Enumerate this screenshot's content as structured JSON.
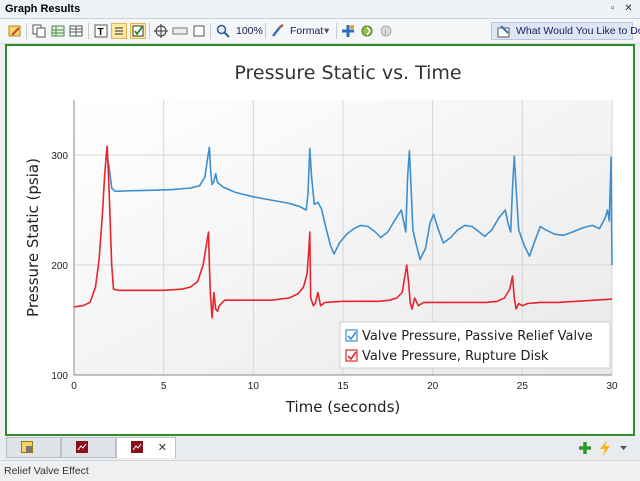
{
  "window": {
    "title": "Graph Results",
    "restore_glyph": "▫",
    "close_glyph": "✕"
  },
  "toolbar": {
    "zoom_label": "100%",
    "format_label": "Format",
    "help_label": "What Would You Like to Do?"
  },
  "tabs": [
    {
      "icon": "data-table-icon",
      "active": false
    },
    {
      "icon": "graph-icon",
      "active": false
    },
    {
      "icon": "graph-icon",
      "active": true,
      "close": "✕"
    }
  ],
  "status": {
    "text": "Relief Valve Effect"
  },
  "chart_data": {
    "type": "line",
    "title": "Pressure Static vs. Time",
    "xlabel": "Time (seconds)",
    "ylabel": "Pressure Static (psia)",
    "xlim": [
      0,
      30
    ],
    "ylim": [
      100,
      350
    ],
    "xticks": [
      0,
      5,
      10,
      15,
      20,
      25,
      30
    ],
    "yticks": [
      100,
      200,
      300
    ],
    "grid": true,
    "legend_position": "bottom-right",
    "series": [
      {
        "name": "Valve Pressure, Passive Relief Valve",
        "color": "#3d8fcf",
        "points": [
          [
            1.8,
            300
          ],
          [
            1.95,
            290
          ],
          [
            2.1,
            270
          ],
          [
            2.3,
            267
          ],
          [
            3,
            267.5
          ],
          [
            4.5,
            268
          ],
          [
            5.5,
            268.5
          ],
          [
            6.5,
            270
          ],
          [
            7.0,
            272
          ],
          [
            7.3,
            280
          ],
          [
            7.45,
            297
          ],
          [
            7.55,
            307
          ],
          [
            7.62,
            285
          ],
          [
            7.7,
            273
          ],
          [
            7.8,
            276
          ],
          [
            7.9,
            283
          ],
          [
            8.0,
            275
          ],
          [
            8.3,
            271
          ],
          [
            9.0,
            266
          ],
          [
            10,
            262
          ],
          [
            11,
            259
          ],
          [
            12,
            256
          ],
          [
            12.6,
            253
          ],
          [
            12.95,
            250
          ],
          [
            13.05,
            265
          ],
          [
            13.15,
            306
          ],
          [
            13.25,
            280
          ],
          [
            13.4,
            255
          ],
          [
            13.6,
            257
          ],
          [
            13.8,
            251
          ],
          [
            14.0,
            237
          ],
          [
            14.3,
            218
          ],
          [
            14.5,
            210
          ],
          [
            14.8,
            220
          ],
          [
            15.2,
            228
          ],
          [
            15.6,
            233
          ],
          [
            16.0,
            236
          ],
          [
            16.4,
            235
          ],
          [
            16.8,
            230
          ],
          [
            17.1,
            225
          ],
          [
            17.5,
            230
          ],
          [
            17.9,
            241
          ],
          [
            18.25,
            250
          ],
          [
            18.4,
            238
          ],
          [
            18.5,
            230
          ],
          [
            18.6,
            280
          ],
          [
            18.7,
            304
          ],
          [
            18.8,
            270
          ],
          [
            18.9,
            232
          ],
          [
            19.05,
            221
          ],
          [
            19.3,
            205
          ],
          [
            19.6,
            215
          ],
          [
            19.85,
            238
          ],
          [
            20.05,
            246
          ],
          [
            20.3,
            233
          ],
          [
            20.6,
            220
          ],
          [
            21.0,
            225
          ],
          [
            21.4,
            232
          ],
          [
            21.8,
            236
          ],
          [
            22.2,
            235
          ],
          [
            22.6,
            230
          ],
          [
            22.9,
            226
          ],
          [
            23.3,
            232
          ],
          [
            23.7,
            243
          ],
          [
            24.05,
            250
          ],
          [
            24.2,
            238
          ],
          [
            24.35,
            230
          ],
          [
            24.45,
            270
          ],
          [
            24.55,
            299
          ],
          [
            24.65,
            270
          ],
          [
            24.8,
            232
          ],
          [
            25.1,
            218
          ],
          [
            25.4,
            208
          ],
          [
            25.7,
            222
          ],
          [
            26.0,
            235
          ],
          [
            26.3,
            232
          ],
          [
            26.8,
            228
          ],
          [
            27.3,
            227
          ],
          [
            27.8,
            230
          ],
          [
            28.4,
            234
          ],
          [
            28.9,
            236
          ],
          [
            29.3,
            233
          ],
          [
            29.6,
            242
          ],
          [
            29.75,
            250
          ],
          [
            29.85,
            240
          ],
          [
            29.95,
            298
          ],
          [
            30.0,
            200
          ]
        ]
      },
      {
        "name": "Valve Pressure, Rupture Disk",
        "color": "#e8242d",
        "points": [
          [
            0,
            162
          ],
          [
            0.5,
            163
          ],
          [
            0.9,
            166
          ],
          [
            1.2,
            180
          ],
          [
            1.4,
            205
          ],
          [
            1.6,
            250
          ],
          [
            1.7,
            280
          ],
          [
            1.8,
            300
          ],
          [
            1.85,
            308
          ],
          [
            1.95,
            270
          ],
          [
            2.1,
            200
          ],
          [
            2.2,
            178
          ],
          [
            2.5,
            177
          ],
          [
            4,
            177
          ],
          [
            5,
            177
          ],
          [
            6,
            178
          ],
          [
            6.5,
            180
          ],
          [
            6.9,
            185
          ],
          [
            7.2,
            200
          ],
          [
            7.4,
            220
          ],
          [
            7.5,
            230
          ],
          [
            7.55,
            200
          ],
          [
            7.6,
            175
          ],
          [
            7.7,
            152
          ],
          [
            7.8,
            175
          ],
          [
            7.9,
            160
          ],
          [
            8.0,
            158
          ],
          [
            8.1,
            163
          ],
          [
            8.4,
            168
          ],
          [
            9,
            168
          ],
          [
            10,
            168
          ],
          [
            11,
            168
          ],
          [
            12,
            170
          ],
          [
            12.5,
            174
          ],
          [
            12.8,
            180
          ],
          [
            13.0,
            192
          ],
          [
            13.1,
            215
          ],
          [
            13.15,
            230
          ],
          [
            13.2,
            170
          ],
          [
            13.35,
            163
          ],
          [
            13.45,
            165
          ],
          [
            13.6,
            175
          ],
          [
            13.75,
            163
          ],
          [
            14,
            166
          ],
          [
            15,
            167
          ],
          [
            16,
            167
          ],
          [
            17,
            167
          ],
          [
            17.6,
            168
          ],
          [
            18.0,
            170
          ],
          [
            18.3,
            175
          ],
          [
            18.55,
            200
          ],
          [
            18.65,
            185
          ],
          [
            18.75,
            165
          ],
          [
            18.85,
            160
          ],
          [
            19.0,
            170
          ],
          [
            19.2,
            163
          ],
          [
            19.5,
            166
          ],
          [
            21,
            166
          ],
          [
            22,
            166
          ],
          [
            23,
            166
          ],
          [
            23.6,
            167
          ],
          [
            24.0,
            170
          ],
          [
            24.3,
            178
          ],
          [
            24.45,
            190
          ],
          [
            24.55,
            170
          ],
          [
            24.65,
            160
          ],
          [
            24.8,
            165
          ],
          [
            25.0,
            163
          ],
          [
            25.3,
            165
          ],
          [
            26,
            166
          ],
          [
            27,
            166
          ],
          [
            28,
            167
          ],
          [
            29,
            168
          ],
          [
            30,
            169
          ]
        ]
      }
    ]
  }
}
